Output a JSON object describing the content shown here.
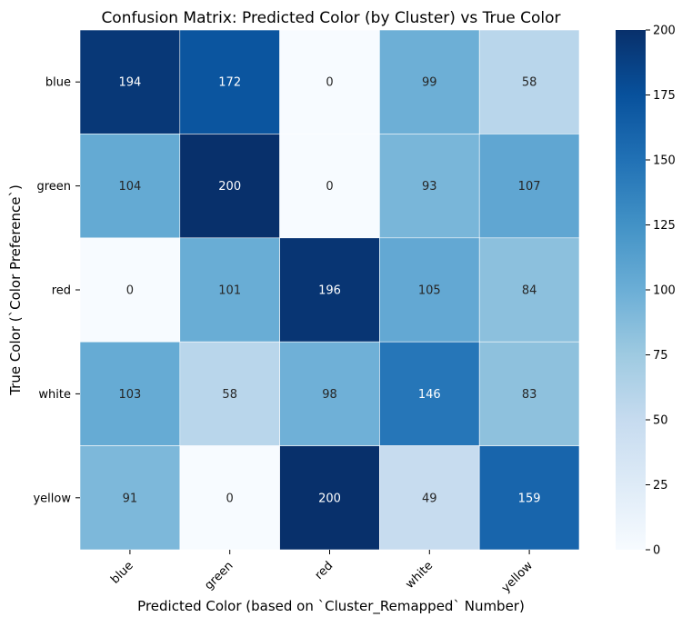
{
  "chart_data": {
    "type": "heatmap",
    "title": "Confusion Matrix: Predicted Color (by Cluster) vs True Color",
    "xlabel": "Predicted Color (based on `Cluster_Remapped` Number)",
    "ylabel": "True Color (`Color Preference`)",
    "x_categories": [
      "blue",
      "green",
      "red",
      "white",
      "yellow"
    ],
    "y_categories": [
      "blue",
      "green",
      "red",
      "white",
      "yellow"
    ],
    "values": [
      [
        194,
        172,
        0,
        99,
        58
      ],
      [
        104,
        200,
        0,
        93,
        107
      ],
      [
        0,
        101,
        196,
        105,
        84
      ],
      [
        103,
        58,
        98,
        146,
        83
      ],
      [
        91,
        0,
        200,
        49,
        159
      ]
    ],
    "colorbar": {
      "min": 0,
      "max": 200,
      "ticks": [
        0,
        25,
        50,
        75,
        100,
        125,
        150,
        175,
        200
      ],
      "colormap": "Blues"
    },
    "colors": {
      "low": "#f7fbff",
      "high": "#08306b"
    }
  }
}
